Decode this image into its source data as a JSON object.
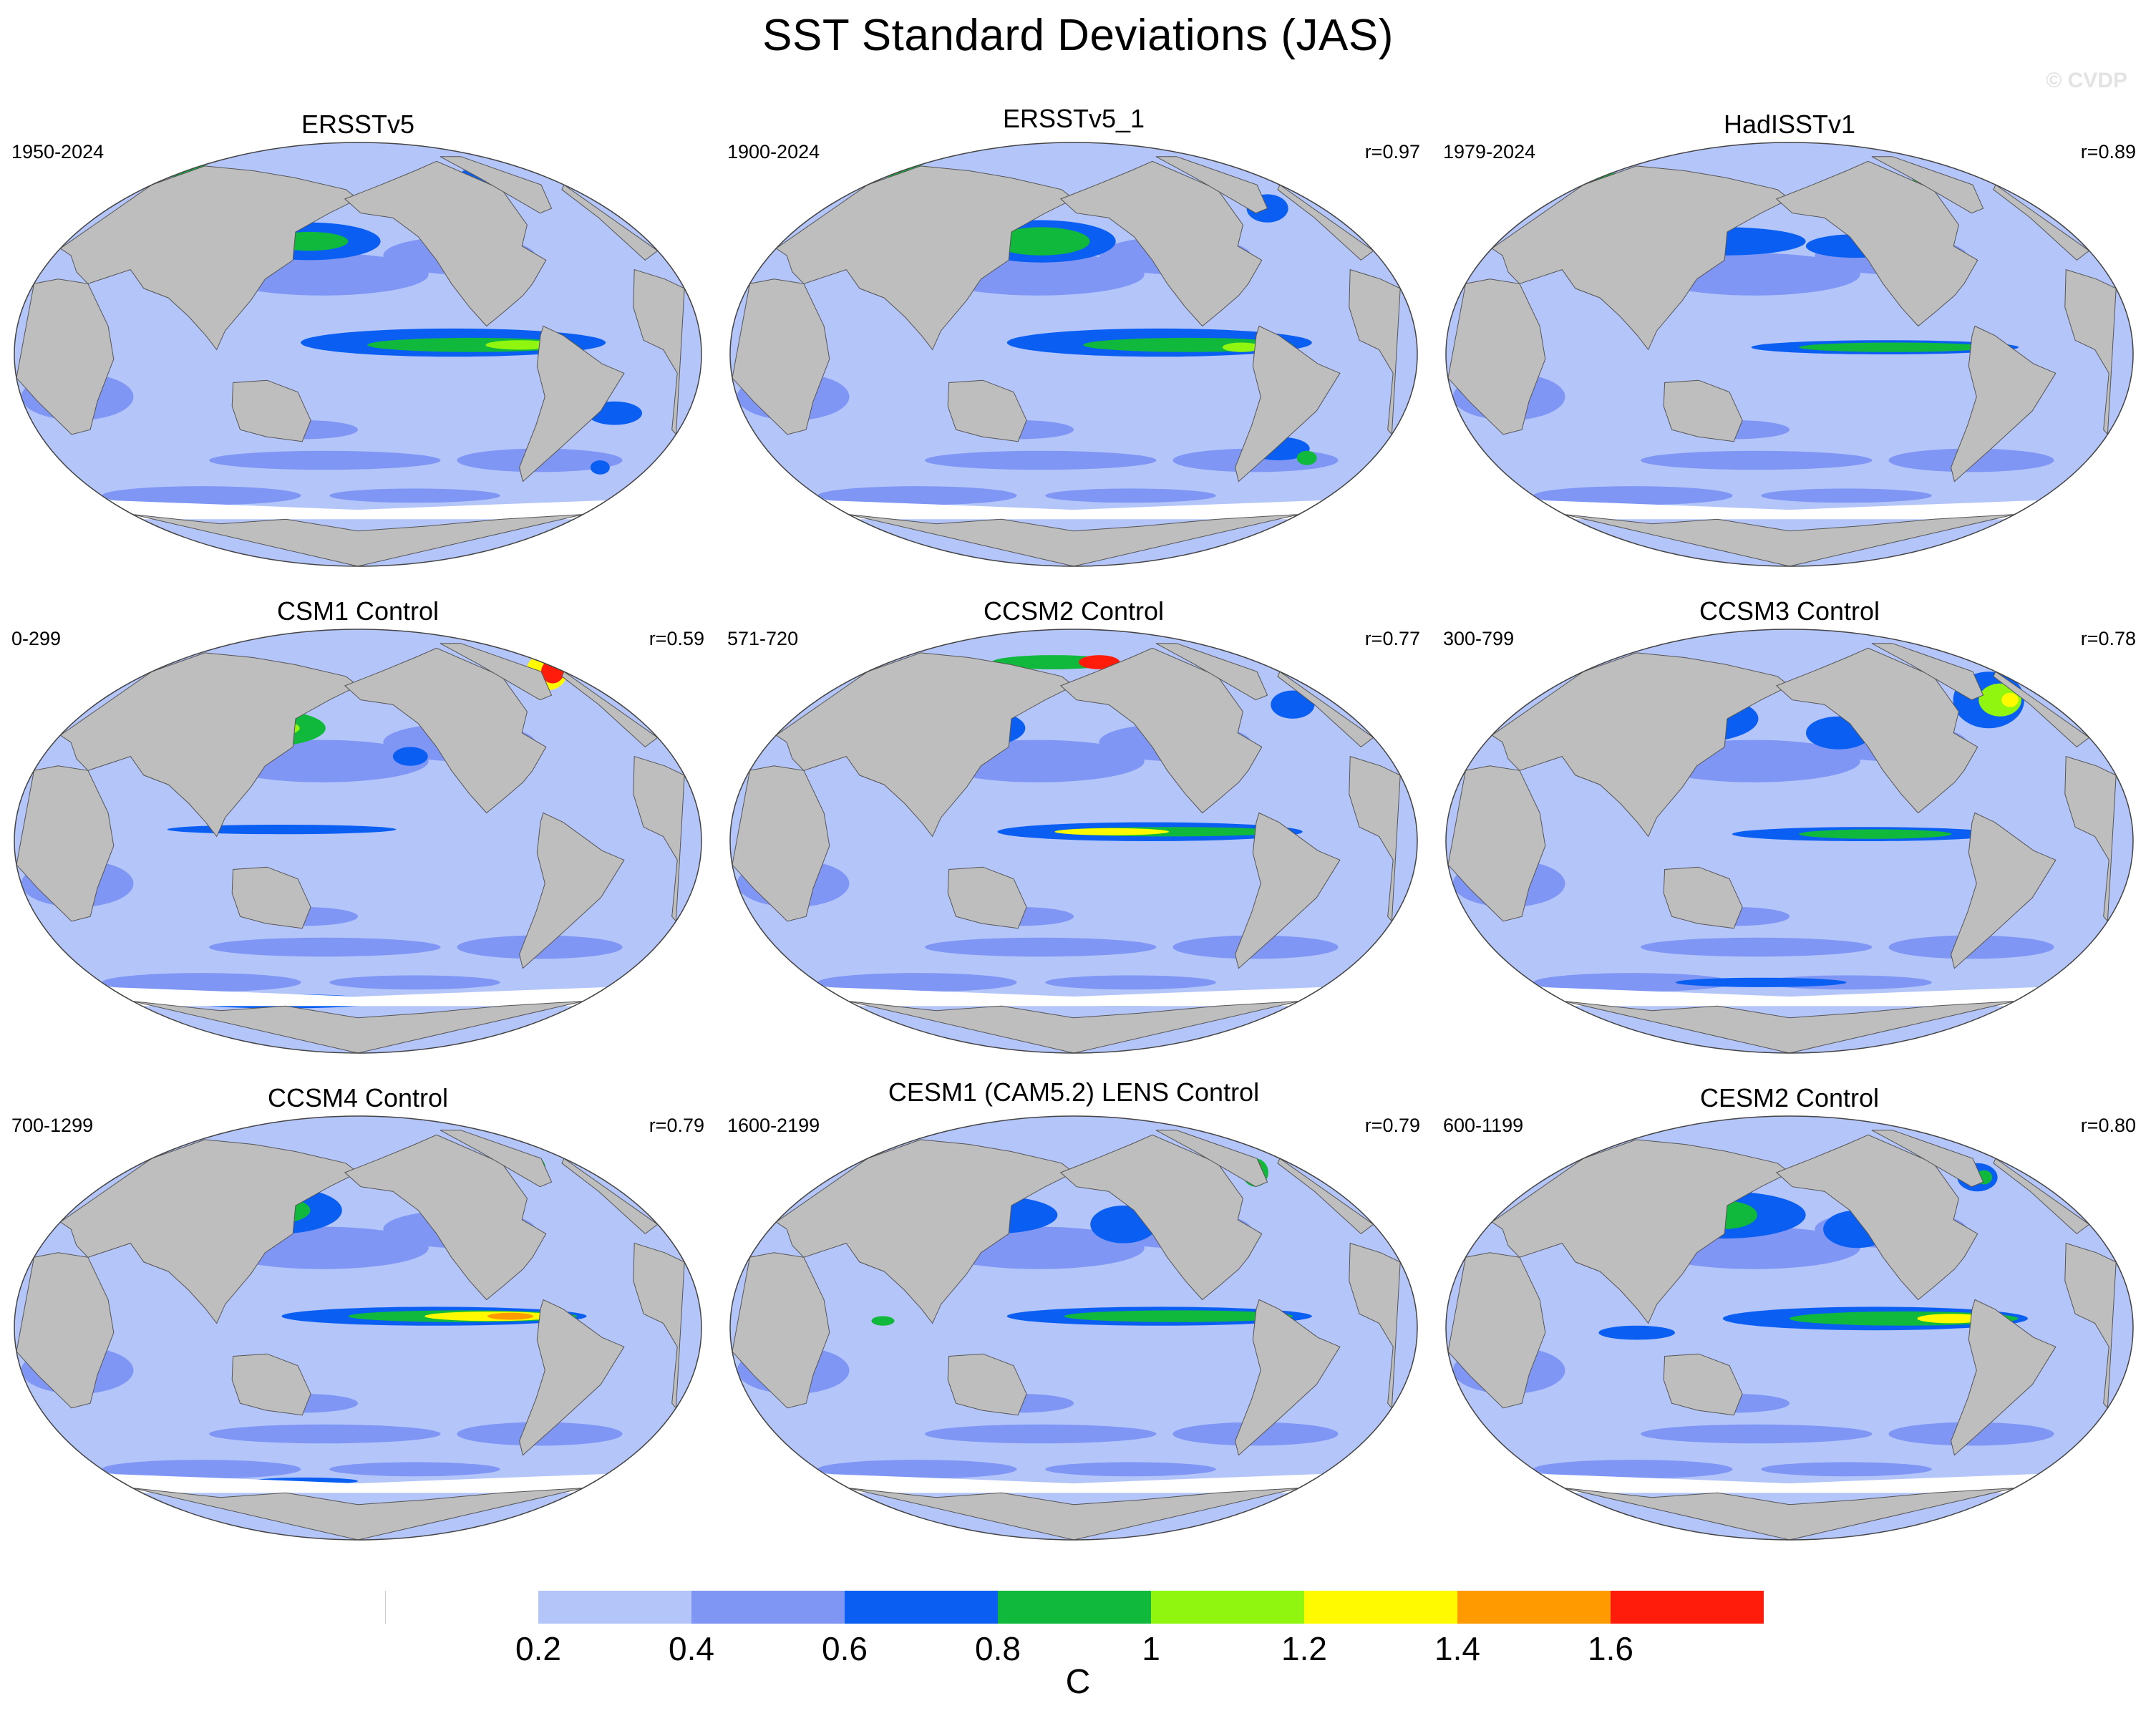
{
  "title": "SST Standard Deviations (JAS)",
  "watermark": "© CVDP",
  "colors": {
    "land": "#bebebe",
    "ocean_base": "#b4c5fa",
    "levels": [
      "#ffffff",
      "#b4c5fa",
      "#7f96f5",
      "#0a5ff2",
      "#10b83c",
      "#90f50f",
      "#fffa00",
      "#ff9b00",
      "#ff1c0a"
    ]
  },
  "panels": [
    {
      "title": "ERSSTv5",
      "period": "1950-2024",
      "corr": ""
    },
    {
      "title": "ERSSTv5_1",
      "period": "1900-2024",
      "corr": "r=0.97"
    },
    {
      "title": "HadISSTv1",
      "period": "1979-2024",
      "corr": "r=0.89"
    },
    {
      "title": "CSM1 Control",
      "period": "0-299",
      "corr": "r=0.59"
    },
    {
      "title": "CCSM2 Control",
      "period": "571-720",
      "corr": "r=0.77"
    },
    {
      "title": "CCSM3 Control",
      "period": "300-799",
      "corr": "r=0.78"
    },
    {
      "title": "CCSM4 Control",
      "period": "700-1299",
      "corr": "r=0.79"
    },
    {
      "title": "CESM1 (CAM5.2) LENS Control",
      "period": "1600-2199",
      "corr": "r=0.79"
    },
    {
      "title": "CESM2 Control",
      "period": "600-1199",
      "corr": "r=0.80"
    }
  ],
  "colorbar": {
    "ticks": [
      "0.2",
      "0.4",
      "0.6",
      "0.8",
      "1",
      "1.2",
      "1.4",
      "1.6"
    ],
    "unit": "C"
  }
}
